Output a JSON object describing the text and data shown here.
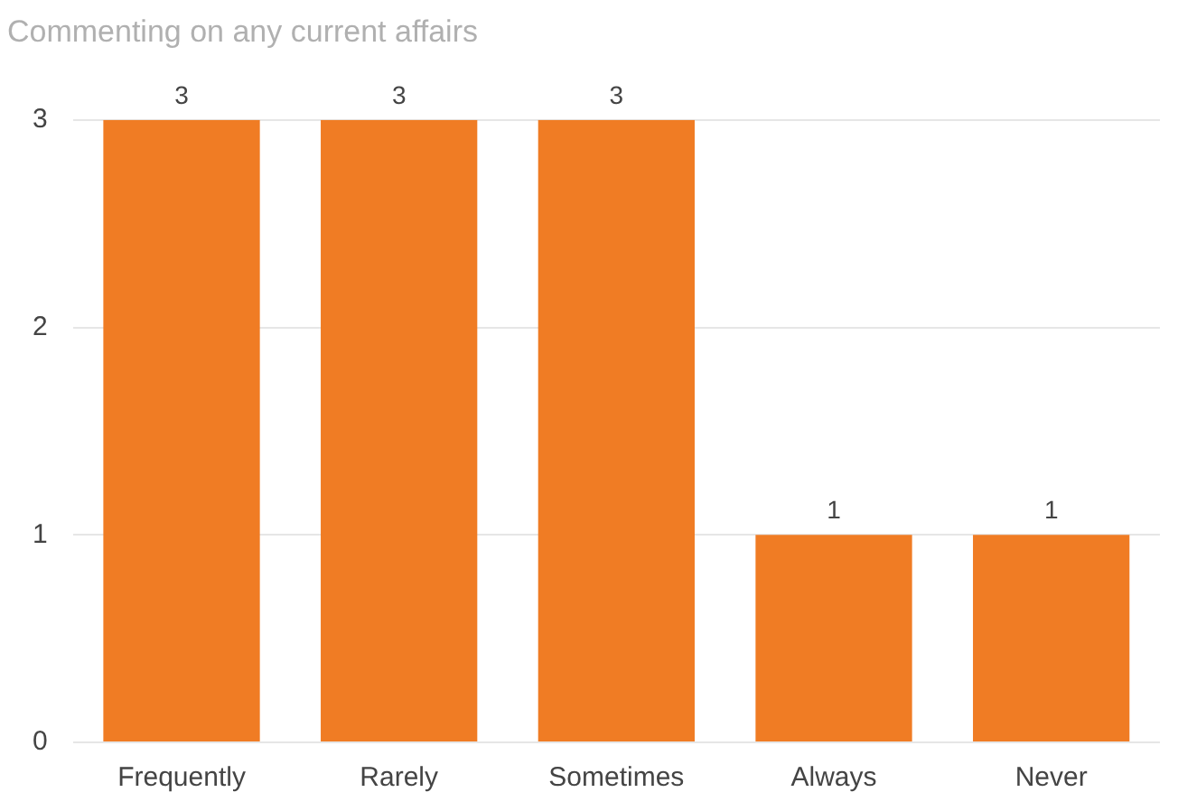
{
  "chart_data": {
    "type": "bar",
    "title": "Commenting on any current affairs",
    "categories": [
      "Frequently",
      "Rarely",
      "Sometimes",
      "Always",
      "Never"
    ],
    "values": [
      3,
      3,
      3,
      1,
      1
    ],
    "color": "#f07c24",
    "ylim": [
      0,
      3
    ],
    "yticks": [
      0,
      1,
      2,
      3
    ],
    "grid": "y",
    "data_labels": true,
    "legend": false
  }
}
